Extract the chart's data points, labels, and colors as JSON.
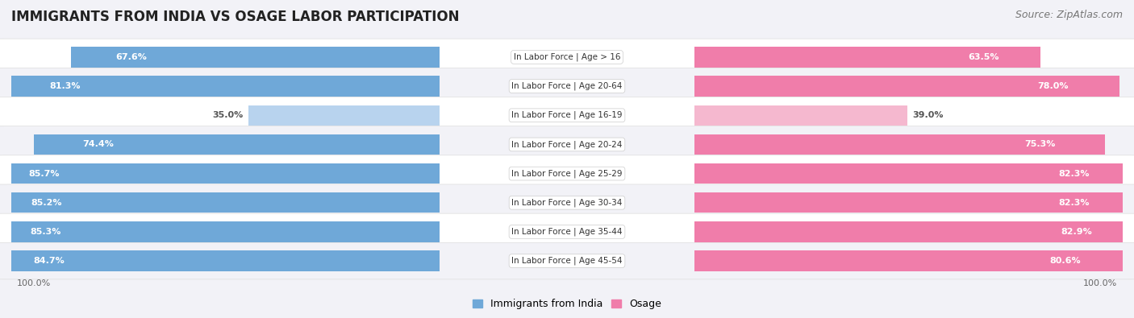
{
  "title": "IMMIGRANTS FROM INDIA VS OSAGE LABOR PARTICIPATION",
  "source": "Source: ZipAtlas.com",
  "categories": [
    "In Labor Force | Age > 16",
    "In Labor Force | Age 20-64",
    "In Labor Force | Age 16-19",
    "In Labor Force | Age 20-24",
    "In Labor Force | Age 25-29",
    "In Labor Force | Age 30-34",
    "In Labor Force | Age 35-44",
    "In Labor Force | Age 45-54"
  ],
  "india_values": [
    67.6,
    81.3,
    35.0,
    74.4,
    85.7,
    85.2,
    85.3,
    84.7
  ],
  "osage_values": [
    63.5,
    78.0,
    39.0,
    75.3,
    82.3,
    82.3,
    82.9,
    80.6
  ],
  "india_color": "#6fa8d8",
  "india_color_light": "#b8d3ee",
  "osage_color": "#f07daa",
  "osage_color_light": "#f5b8cf",
  "row_bg_color_odd": "#f2f2f7",
  "row_bg_color_even": "#ffffff",
  "label_color_white": "#ffffff",
  "label_color_dark": "#555555",
  "title_fontsize": 12,
  "source_fontsize": 9,
  "bar_label_fontsize": 8,
  "category_fontsize": 7.5,
  "legend_fontsize": 9,
  "axis_label_fontsize": 8,
  "max_value": 100.0,
  "background_color": "#f2f2f7",
  "light_threshold": 50
}
